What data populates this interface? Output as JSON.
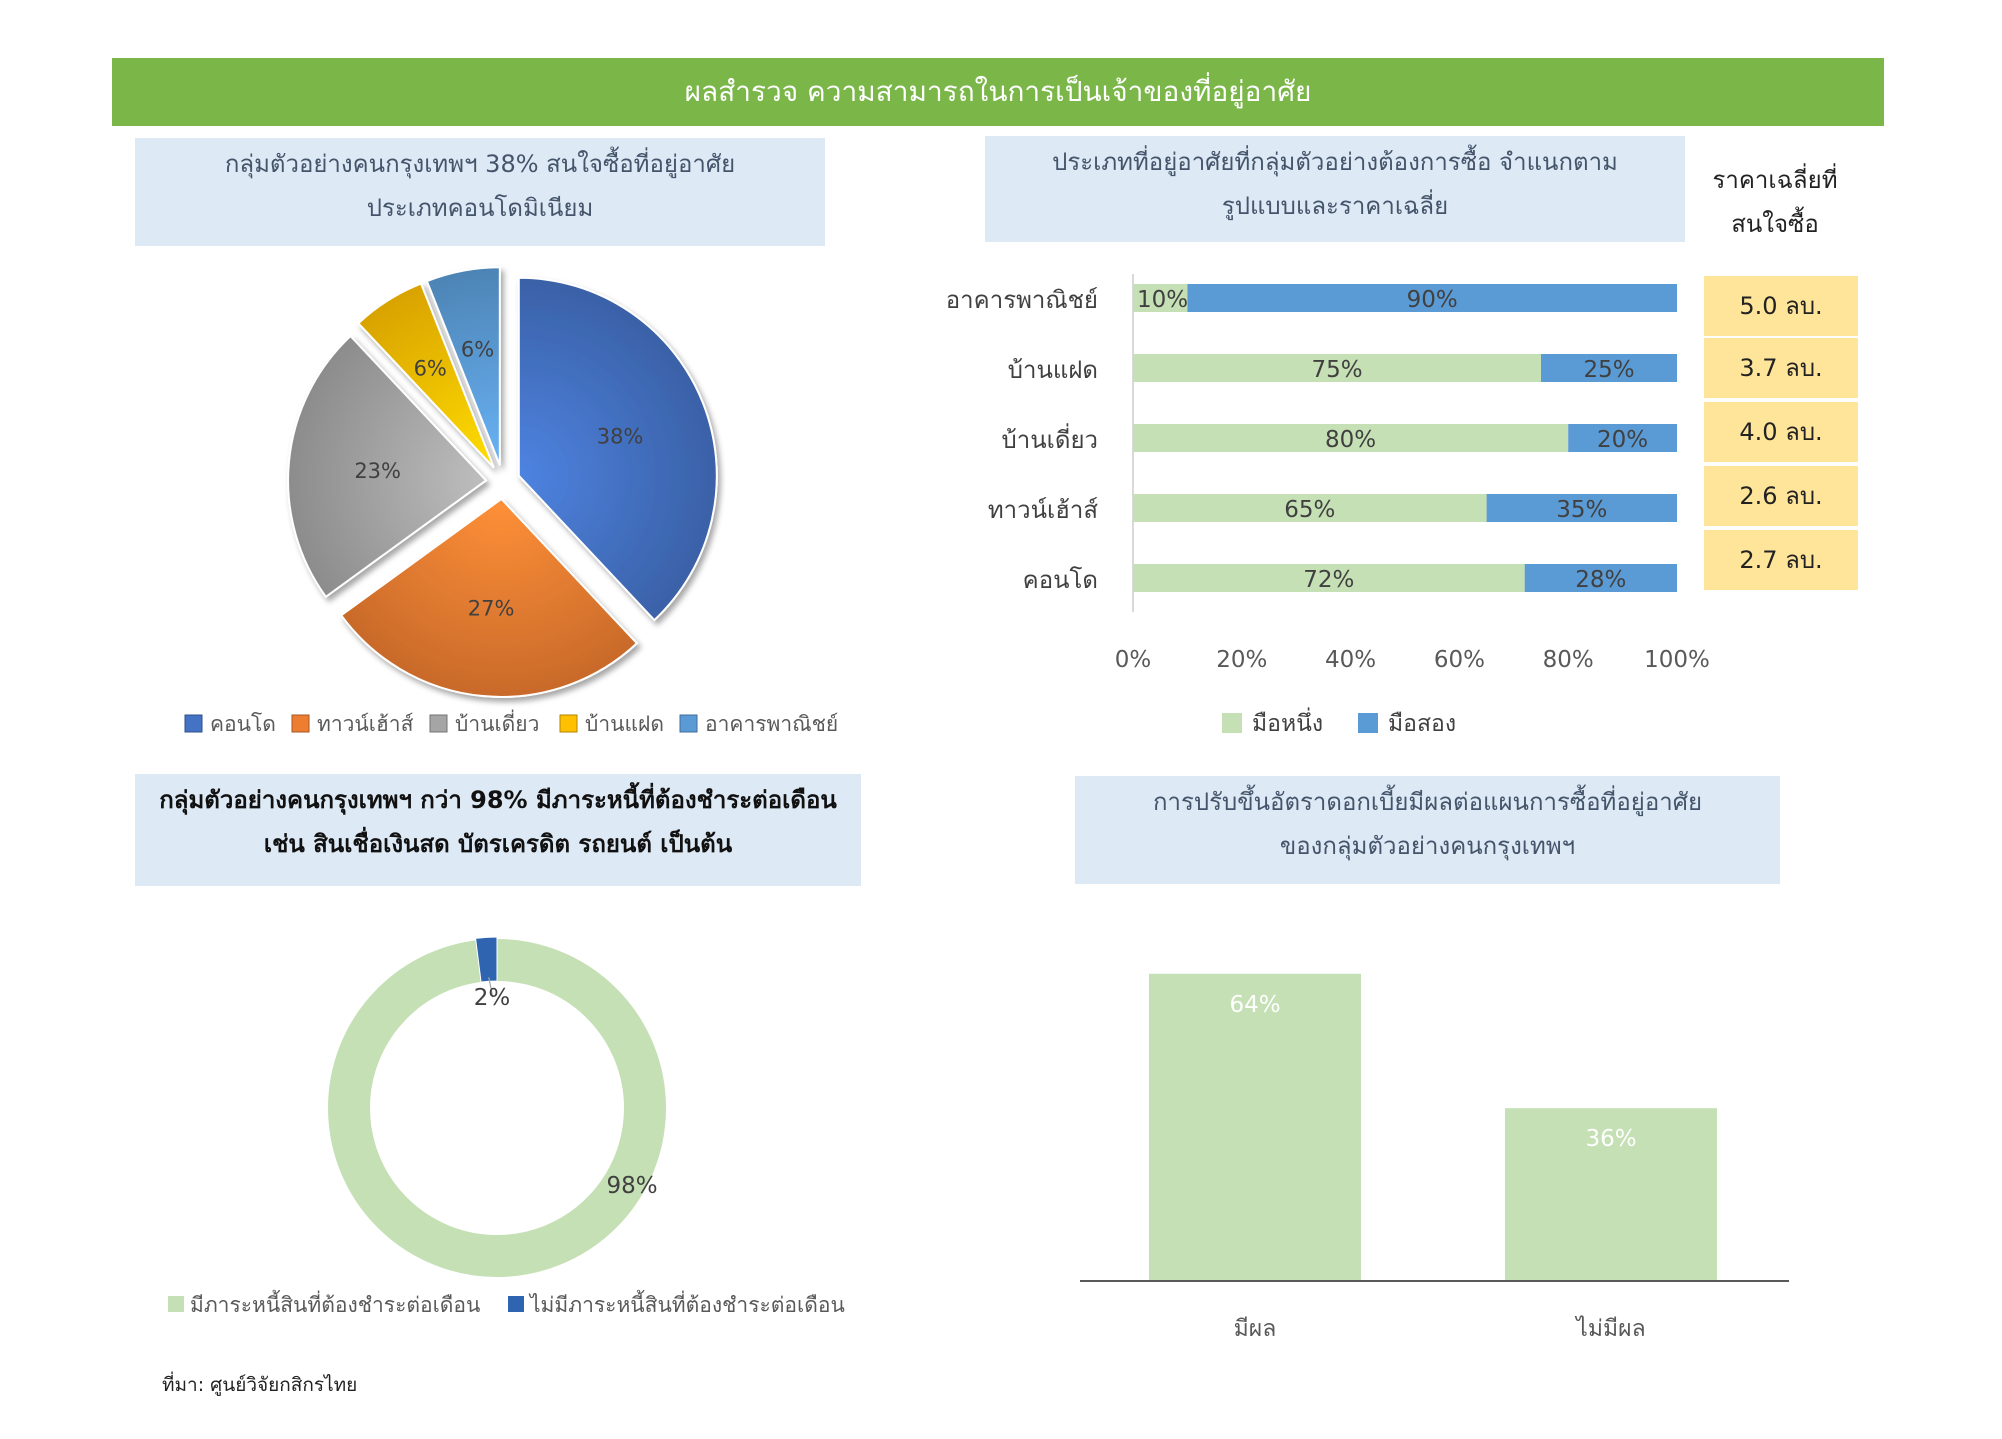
{
  "banner": "ผลสำรวจ ความสามารถในการเป็นเจ้าของที่อยู่อาศัย",
  "source": "ที่มา: ศูนย์วิจัยกสิกรไทย",
  "titles": {
    "pie_line1": "กลุ่มตัวอย่างคนกรุงเทพฯ 38% สนใจซื้อที่อยู่อาศัย",
    "pie_line2": "ประเภทคอนโดมิเนียม",
    "bar_line1": "ประเภทที่อยู่อาศัยที่กลุ่มตัวอย่างต้องการซื้อ จำแนกตาม",
    "bar_line2": "รูปแบบและราคาเฉลี่ย",
    "price_line1": "ราคาเฉลี่ยที่",
    "price_line2": "สนใจซื้อ",
    "donut_line1": "กลุ่มตัวอย่างคนกรุงเทพฯ กว่า 98% มีภาระหนี้ที่ต้องชำระต่อเดือน",
    "donut_line2": "เช่น สินเชื่อเงินสด บัตรเครดิต รถยนต์ เป็นต้น",
    "col_line1": "การปรับขึ้นอัตราดอกเบี้ยมีผลต่อแผนการซื้อที่อยู่อาศัย",
    "col_line2": "ของกลุ่มตัวอย่างคนกรุงเทพฯ"
  },
  "prices": [
    "5.0 ลบ.",
    "3.7 ลบ.",
    "4.0 ลบ.",
    "2.6 ลบ.",
    "2.7 ลบ."
  ],
  "colors": {
    "banner": "#7ab648",
    "title_bg": "#dde9f5",
    "price_bg": "#ffe599",
    "light_green": "#c5e0b4",
    "mid_blue": "#5b9bd5",
    "dark_blue": "#2e64b0"
  },
  "chart_data": [
    {
      "type": "pie",
      "labels": [
        "คอนโด",
        "ทาวน์เฮ้าส์",
        "บ้านเดี่ยว",
        "บ้านแฝด",
        "อาคารพาณิชย์"
      ],
      "values": [
        38,
        27,
        23,
        6,
        6
      ],
      "data_labels": [
        "38%",
        "27%",
        "23%",
        "6%",
        "6%"
      ],
      "colors": [
        "#4472c4",
        "#ed7d31",
        "#a5a5a5",
        "#ffc000",
        "#5b9bd5"
      ],
      "legend": "bottom"
    },
    {
      "type": "bar",
      "orientation": "horizontal",
      "stacked": true,
      "categories": [
        "อาคารพาณิชย์",
        "บ้านแฝด",
        "บ้านเดี่ยว",
        "ทาวน์เฮ้าส์",
        "คอนโด"
      ],
      "series": [
        {
          "name": "มือหนึ่ง",
          "values": [
            10,
            75,
            80,
            65,
            72
          ],
          "color": "#c5e0b4"
        },
        {
          "name": "มือสอง",
          "values": [
            90,
            25,
            20,
            35,
            28
          ],
          "color": "#5b9bd5"
        }
      ],
      "xlim": [
        0,
        100
      ],
      "xticks": [
        "0%",
        "20%",
        "40%",
        "60%",
        "80%",
        "100%"
      ],
      "legend": "bottom"
    },
    {
      "type": "pie",
      "donut": true,
      "labels": [
        "มีภาระหนี้สินที่ต้องชำระต่อเดือน",
        "ไม่มีภาระหนี้สินที่ต้องชำระต่อเดือน"
      ],
      "values": [
        98,
        2
      ],
      "data_labels": [
        "98%",
        "2%"
      ],
      "colors": [
        "#c5e0b4",
        "#2e64b0"
      ],
      "legend": "bottom"
    },
    {
      "type": "bar",
      "categories": [
        "มีผล",
        "ไม่มีผล"
      ],
      "values": [
        64,
        36
      ],
      "data_labels": [
        "64%",
        "36%"
      ],
      "color": "#c5e0b4"
    }
  ]
}
